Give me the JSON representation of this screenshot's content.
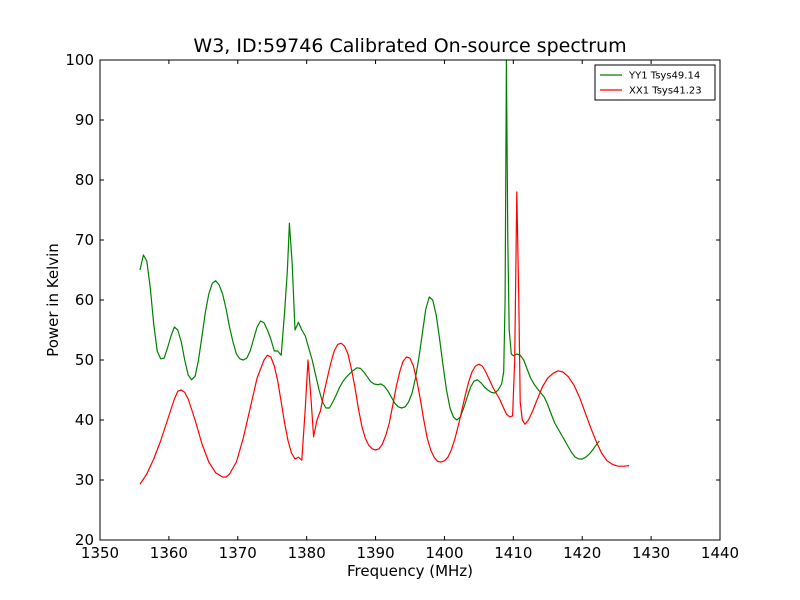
{
  "chart_data": {
    "type": "line",
    "title": "W3, ID:59746 Calibrated On-source spectrum",
    "xlabel": "Frequency (MHz)",
    "ylabel": "Power in Kelvin",
    "xlim": [
      1350,
      1440
    ],
    "ylim": [
      20,
      100
    ],
    "xticks": [
      1350,
      1360,
      1370,
      1380,
      1390,
      1400,
      1410,
      1420,
      1430,
      1440
    ],
    "yticks": [
      20,
      30,
      40,
      50,
      60,
      70,
      80,
      90,
      100
    ],
    "grid": false,
    "legend_position": "top-right",
    "series": [
      {
        "name": "YY1 Tsys49.14",
        "color": "#008000",
        "points": [
          [
            1355.8,
            65.0
          ],
          [
            1356.3,
            67.5
          ],
          [
            1356.8,
            66.5
          ],
          [
            1357.3,
            62.0
          ],
          [
            1357.8,
            56.0
          ],
          [
            1358.3,
            51.5
          ],
          [
            1358.8,
            50.2
          ],
          [
            1359.3,
            50.3
          ],
          [
            1359.8,
            52.0
          ],
          [
            1360.3,
            54.0
          ],
          [
            1360.8,
            55.5
          ],
          [
            1361.3,
            55.0
          ],
          [
            1361.8,
            53.0
          ],
          [
            1362.3,
            50.0
          ],
          [
            1362.8,
            47.5
          ],
          [
            1363.3,
            46.7
          ],
          [
            1363.8,
            47.3
          ],
          [
            1364.3,
            50.0
          ],
          [
            1364.8,
            54.0
          ],
          [
            1365.3,
            58.0
          ],
          [
            1365.8,
            61.0
          ],
          [
            1366.3,
            62.8
          ],
          [
            1366.8,
            63.2
          ],
          [
            1367.3,
            62.5
          ],
          [
            1367.8,
            61.0
          ],
          [
            1368.3,
            58.5
          ],
          [
            1368.8,
            55.5
          ],
          [
            1369.3,
            53.0
          ],
          [
            1369.8,
            51.0
          ],
          [
            1370.3,
            50.2
          ],
          [
            1370.8,
            50.0
          ],
          [
            1371.3,
            50.3
          ],
          [
            1371.8,
            51.5
          ],
          [
            1372.3,
            53.5
          ],
          [
            1372.8,
            55.5
          ],
          [
            1373.3,
            56.5
          ],
          [
            1373.8,
            56.2
          ],
          [
            1374.3,
            55.0
          ],
          [
            1374.8,
            53.5
          ],
          [
            1375.3,
            51.5
          ],
          [
            1375.8,
            51.5
          ],
          [
            1376.3,
            50.8
          ],
          [
            1376.8,
            58.0
          ],
          [
            1377.2,
            65.0
          ],
          [
            1377.5,
            72.8
          ],
          [
            1377.9,
            66.0
          ],
          [
            1378.3,
            55.0
          ],
          [
            1378.8,
            56.3
          ],
          [
            1379.3,
            55.0
          ],
          [
            1379.8,
            54.0
          ],
          [
            1380.3,
            52.0
          ],
          [
            1380.8,
            50.0
          ],
          [
            1381.3,
            47.5
          ],
          [
            1381.8,
            45.0
          ],
          [
            1382.3,
            43.0
          ],
          [
            1382.8,
            42.0
          ],
          [
            1383.3,
            42.0
          ],
          [
            1383.8,
            43.0
          ],
          [
            1384.3,
            44.2
          ],
          [
            1384.8,
            45.5
          ],
          [
            1385.3,
            46.5
          ],
          [
            1385.8,
            47.2
          ],
          [
            1386.3,
            47.8
          ],
          [
            1386.8,
            48.3
          ],
          [
            1387.3,
            48.7
          ],
          [
            1387.8,
            48.6
          ],
          [
            1388.3,
            48.0
          ],
          [
            1388.8,
            47.2
          ],
          [
            1389.3,
            46.4
          ],
          [
            1389.8,
            46.0
          ],
          [
            1390.3,
            45.9
          ],
          [
            1390.8,
            46.0
          ],
          [
            1391.3,
            45.6
          ],
          [
            1391.8,
            44.8
          ],
          [
            1392.3,
            43.8
          ],
          [
            1392.8,
            42.8
          ],
          [
            1393.3,
            42.2
          ],
          [
            1393.8,
            42.0
          ],
          [
            1394.3,
            42.2
          ],
          [
            1394.8,
            43.0
          ],
          [
            1395.3,
            44.5
          ],
          [
            1395.8,
            47.0
          ],
          [
            1396.3,
            50.5
          ],
          [
            1396.8,
            54.5
          ],
          [
            1397.3,
            58.5
          ],
          [
            1397.8,
            60.5
          ],
          [
            1398.3,
            60.0
          ],
          [
            1398.8,
            57.5
          ],
          [
            1399.3,
            53.5
          ],
          [
            1399.8,
            49.0
          ],
          [
            1400.3,
            45.0
          ],
          [
            1400.8,
            42.0
          ],
          [
            1401.3,
            40.5
          ],
          [
            1401.8,
            40.0
          ],
          [
            1402.3,
            40.5
          ],
          [
            1402.8,
            42.0
          ],
          [
            1403.3,
            43.8
          ],
          [
            1403.8,
            45.5
          ],
          [
            1404.3,
            46.5
          ],
          [
            1404.8,
            46.7
          ],
          [
            1405.3,
            46.2
          ],
          [
            1405.8,
            45.5
          ],
          [
            1406.3,
            45.0
          ],
          [
            1406.8,
            44.6
          ],
          [
            1407.3,
            44.5
          ],
          [
            1407.8,
            45.0
          ],
          [
            1408.3,
            46.0
          ],
          [
            1408.6,
            48.0
          ],
          [
            1408.8,
            60.0
          ],
          [
            1409.0,
            100.0
          ],
          [
            1409.2,
            70.0
          ],
          [
            1409.4,
            55.0
          ],
          [
            1409.7,
            51.0
          ],
          [
            1410.0,
            50.7
          ],
          [
            1410.5,
            51.0
          ],
          [
            1411.0,
            50.8
          ],
          [
            1411.5,
            50.0
          ],
          [
            1412.0,
            48.5
          ],
          [
            1412.5,
            47.0
          ],
          [
            1413.0,
            46.0
          ],
          [
            1413.5,
            45.2
          ],
          [
            1414.0,
            44.5
          ],
          [
            1414.5,
            43.8
          ],
          [
            1415.0,
            42.5
          ],
          [
            1415.5,
            41.0
          ],
          [
            1416.0,
            39.5
          ],
          [
            1416.5,
            38.5
          ],
          [
            1417.0,
            37.5
          ],
          [
            1417.5,
            36.5
          ],
          [
            1418.0,
            35.5
          ],
          [
            1418.5,
            34.5
          ],
          [
            1419.0,
            33.8
          ],
          [
            1419.5,
            33.5
          ],
          [
            1420.0,
            33.5
          ],
          [
            1420.5,
            33.8
          ],
          [
            1421.0,
            34.3
          ],
          [
            1421.5,
            35.0
          ],
          [
            1422.0,
            35.8
          ],
          [
            1422.5,
            36.5
          ]
        ]
      },
      {
        "name": "XX1 Tsys41.23",
        "color": "#ff0000",
        "points": [
          [
            1355.8,
            29.3
          ],
          [
            1356.8,
            31.0
          ],
          [
            1357.8,
            33.5
          ],
          [
            1358.8,
            36.5
          ],
          [
            1359.8,
            40.0
          ],
          [
            1360.8,
            43.5
          ],
          [
            1361.3,
            44.8
          ],
          [
            1361.8,
            45.0
          ],
          [
            1362.3,
            44.6
          ],
          [
            1362.8,
            43.5
          ],
          [
            1363.8,
            40.0
          ],
          [
            1364.8,
            36.0
          ],
          [
            1365.8,
            33.0
          ],
          [
            1366.8,
            31.2
          ],
          [
            1367.8,
            30.5
          ],
          [
            1368.3,
            30.5
          ],
          [
            1368.8,
            31.0
          ],
          [
            1369.8,
            33.0
          ],
          [
            1370.8,
            37.0
          ],
          [
            1371.8,
            42.0
          ],
          [
            1372.8,
            47.0
          ],
          [
            1373.8,
            50.0
          ],
          [
            1374.3,
            50.8
          ],
          [
            1374.8,
            50.5
          ],
          [
            1375.3,
            49.0
          ],
          [
            1375.8,
            46.5
          ],
          [
            1376.3,
            43.0
          ],
          [
            1376.8,
            39.5
          ],
          [
            1377.3,
            36.5
          ],
          [
            1377.8,
            34.5
          ],
          [
            1378.3,
            33.5
          ],
          [
            1378.8,
            33.8
          ],
          [
            1379.3,
            33.3
          ],
          [
            1379.8,
            42.0
          ],
          [
            1380.2,
            50.0
          ],
          [
            1380.6,
            44.0
          ],
          [
            1381.0,
            37.2
          ],
          [
            1381.5,
            40.0
          ],
          [
            1382.0,
            41.5
          ],
          [
            1382.5,
            44.5
          ],
          [
            1383.0,
            47.0
          ],
          [
            1383.5,
            49.5
          ],
          [
            1384.0,
            51.5
          ],
          [
            1384.5,
            52.6
          ],
          [
            1385.0,
            52.8
          ],
          [
            1385.5,
            52.3
          ],
          [
            1386.0,
            51.0
          ],
          [
            1386.5,
            48.5
          ],
          [
            1387.0,
            45.5
          ],
          [
            1387.5,
            42.0
          ],
          [
            1388.0,
            39.0
          ],
          [
            1388.5,
            37.0
          ],
          [
            1389.0,
            35.8
          ],
          [
            1389.5,
            35.2
          ],
          [
            1390.0,
            35.0
          ],
          [
            1390.5,
            35.2
          ],
          [
            1391.0,
            36.0
          ],
          [
            1391.5,
            37.5
          ],
          [
            1392.0,
            39.5
          ],
          [
            1392.5,
            42.5
          ],
          [
            1393.0,
            45.5
          ],
          [
            1393.5,
            48.0
          ],
          [
            1394.0,
            49.8
          ],
          [
            1394.5,
            50.5
          ],
          [
            1395.0,
            50.3
          ],
          [
            1395.5,
            49.0
          ],
          [
            1396.0,
            46.5
          ],
          [
            1396.5,
            43.5
          ],
          [
            1397.0,
            40.0
          ],
          [
            1397.5,
            37.0
          ],
          [
            1398.0,
            35.0
          ],
          [
            1398.5,
            33.8
          ],
          [
            1399.0,
            33.1
          ],
          [
            1399.5,
            33.0
          ],
          [
            1400.0,
            33.2
          ],
          [
            1400.5,
            33.8
          ],
          [
            1401.0,
            35.0
          ],
          [
            1401.5,
            36.8
          ],
          [
            1402.0,
            39.0
          ],
          [
            1402.5,
            41.5
          ],
          [
            1403.0,
            44.0
          ],
          [
            1403.5,
            46.3
          ],
          [
            1404.0,
            48.0
          ],
          [
            1404.5,
            49.0
          ],
          [
            1405.0,
            49.3
          ],
          [
            1405.5,
            49.0
          ],
          [
            1406.0,
            48.0
          ],
          [
            1406.5,
            46.8
          ],
          [
            1407.0,
            45.5
          ],
          [
            1407.5,
            44.5
          ],
          [
            1408.0,
            43.5
          ],
          [
            1408.5,
            42.2
          ],
          [
            1409.0,
            41.0
          ],
          [
            1409.5,
            40.5
          ],
          [
            1409.9,
            40.7
          ],
          [
            1410.2,
            50.0
          ],
          [
            1410.5,
            78.0
          ],
          [
            1410.8,
            60.0
          ],
          [
            1411.0,
            43.0
          ],
          [
            1411.3,
            40.0
          ],
          [
            1411.7,
            39.3
          ],
          [
            1412.2,
            40.0
          ],
          [
            1412.8,
            41.5
          ],
          [
            1413.5,
            43.5
          ],
          [
            1414.2,
            45.5
          ],
          [
            1415.0,
            47.0
          ],
          [
            1415.8,
            47.8
          ],
          [
            1416.5,
            48.2
          ],
          [
            1417.2,
            48.0
          ],
          [
            1418.0,
            47.2
          ],
          [
            1418.8,
            45.8
          ],
          [
            1419.6,
            43.8
          ],
          [
            1420.4,
            41.3
          ],
          [
            1421.2,
            38.8
          ],
          [
            1422.0,
            36.5
          ],
          [
            1422.8,
            34.5
          ],
          [
            1423.6,
            33.2
          ],
          [
            1424.4,
            32.6
          ],
          [
            1425.2,
            32.3
          ],
          [
            1426.0,
            32.3
          ],
          [
            1426.8,
            32.4
          ]
        ]
      }
    ]
  }
}
